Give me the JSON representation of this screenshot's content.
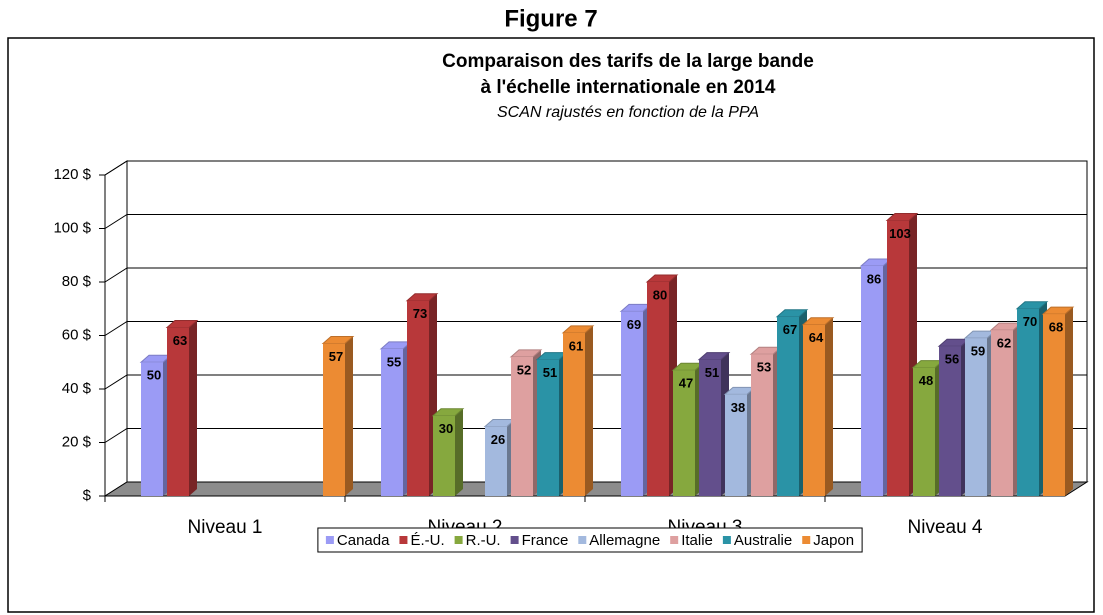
{
  "heading": "Figure 7",
  "chart_data": {
    "type": "bar3d",
    "title": [
      "Comparaison des tarifs de la large bande",
      "à l'échelle internationale en 2014"
    ],
    "subtitle": "SCAN rajustés en fonction de la PPA",
    "categories": [
      "Niveau 1",
      "Niveau 2",
      "Niveau 3",
      "Niveau 4"
    ],
    "series": [
      {
        "name": "Canada",
        "color": "#9b9bf5",
        "values": [
          50,
          55,
          69,
          86
        ]
      },
      {
        "name": "É.-U.",
        "color": "#b8383a",
        "values": [
          63,
          73,
          80,
          103
        ]
      },
      {
        "name": "R.-U.",
        "color": "#86a83e",
        "values": [
          null,
          30,
          47,
          48
        ]
      },
      {
        "name": "France",
        "color": "#634f8c",
        "values": [
          null,
          null,
          51,
          56
        ]
      },
      {
        "name": "Allemagne",
        "color": "#a3b9de",
        "values": [
          null,
          26,
          38,
          59
        ]
      },
      {
        "name": "Italie",
        "color": "#dea0a0",
        "values": [
          null,
          52,
          53,
          62
        ]
      },
      {
        "name": "Australie",
        "color": "#2a93a6",
        "values": [
          null,
          51,
          67,
          70
        ]
      },
      {
        "name": "Japon",
        "color": "#ec8b33",
        "values": [
          57,
          61,
          64,
          68
        ]
      }
    ],
    "ylim": [
      0,
      120
    ],
    "yticks": [
      {
        "value": 0,
        "label": "$"
      },
      {
        "value": 20,
        "label": "20 $"
      },
      {
        "value": 40,
        "label": "40 $"
      },
      {
        "value": 60,
        "label": "60 $"
      },
      {
        "value": 80,
        "label": "80 $"
      },
      {
        "value": 100,
        "label": "100 $"
      },
      {
        "value": 120,
        "label": "120 $"
      }
    ],
    "grid": true,
    "legend": "bottom"
  }
}
